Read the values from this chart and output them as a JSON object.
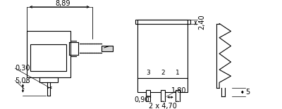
{
  "bg_color": "#ffffff",
  "line_color": "#000000",
  "fig_width": 4.0,
  "fig_height": 1.55,
  "dpi": 100,
  "annotations": {
    "8_89": "8,89",
    "0_30": "0,30",
    "5_08": "5,08",
    "2_40": "2,40",
    "0_90": "0,90",
    "1_80": "1,80",
    "2x4_70": "2 x 4,70",
    "5": "5",
    "pins": [
      "3",
      "2",
      "1"
    ]
  }
}
